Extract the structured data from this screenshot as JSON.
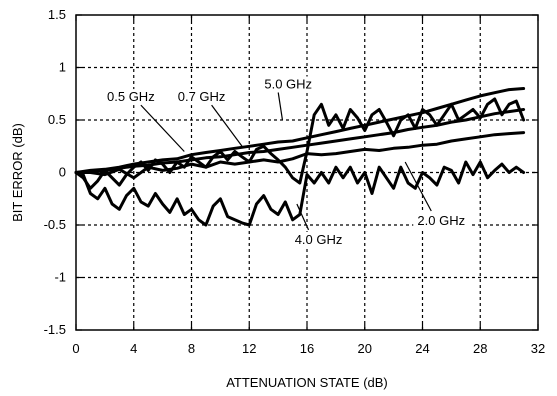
{
  "chart_data": {
    "type": "line",
    "title": "",
    "xlabel": "ATTENUATION STATE (dB)",
    "ylabel": "BIT ERROR (dB)",
    "xlim": [
      0,
      32
    ],
    "ylim": [
      -1.5,
      1.5
    ],
    "xticks": [
      0,
      4,
      8,
      12,
      16,
      20,
      24,
      28,
      32
    ],
    "xtick_labels": [
      "0",
      "4",
      "8",
      "12",
      "16",
      "20",
      "24",
      "28",
      "32"
    ],
    "yticks": [
      -1.5,
      -1,
      -0.5,
      0,
      0.5,
      1,
      1.5
    ],
    "ytick_labels": [
      "-1.5",
      "-1",
      "-0.5",
      "0",
      "0.5",
      "1",
      "1.5"
    ],
    "grid": true,
    "grid_style": "dashed",
    "line_color": "#000000",
    "series": [
      {
        "name": "0.5 GHz",
        "x": [
          0,
          1,
          2,
          3,
          4,
          5,
          6,
          7,
          8,
          9,
          10,
          11,
          12,
          13,
          14,
          15,
          16,
          17,
          18,
          19,
          20,
          21,
          22,
          23,
          24,
          25,
          26,
          27,
          28,
          29,
          30,
          31
        ],
        "values": [
          0.0,
          0.02,
          0.03,
          0.05,
          0.08,
          0.1,
          0.12,
          0.13,
          0.17,
          0.19,
          0.21,
          0.23,
          0.25,
          0.27,
          0.29,
          0.3,
          0.33,
          0.36,
          0.39,
          0.42,
          0.45,
          0.48,
          0.51,
          0.54,
          0.57,
          0.61,
          0.65,
          0.69,
          0.73,
          0.76,
          0.79,
          0.8
        ]
      },
      {
        "name": "0.7 GHz",
        "x": [
          0,
          1,
          2,
          3,
          4,
          5,
          6,
          7,
          8,
          9,
          10,
          11,
          12,
          13,
          14,
          15,
          16,
          17,
          18,
          19,
          20,
          21,
          22,
          23,
          24,
          25,
          26,
          27,
          28,
          29,
          30,
          31
        ],
        "values": [
          0.0,
          0.01,
          0.02,
          0.04,
          0.06,
          0.07,
          0.09,
          0.1,
          0.12,
          0.14,
          0.15,
          0.17,
          0.19,
          0.2,
          0.22,
          0.24,
          0.26,
          0.28,
          0.3,
          0.32,
          0.34,
          0.36,
          0.38,
          0.41,
          0.43,
          0.45,
          0.48,
          0.5,
          0.53,
          0.56,
          0.58,
          0.6
        ]
      },
      {
        "name": "5.0 GHz",
        "x": [
          0,
          0.5,
          1,
          1.5,
          2,
          2.5,
          3,
          3.5,
          4,
          4.5,
          5,
          5.5,
          6,
          6.5,
          7,
          7.5,
          8,
          8.5,
          9,
          9.5,
          10,
          10.5,
          11,
          11.5,
          12,
          12.5,
          13,
          13.5,
          14,
          14.5,
          15,
          15.5,
          16,
          16.5,
          17,
          17.5,
          18,
          18.5,
          19,
          19.5,
          20,
          20.5,
          21,
          21.5,
          22,
          22.5,
          23,
          23.5,
          24,
          24.5,
          25,
          25.5,
          26,
          26.5,
          27,
          27.5,
          28,
          28.5,
          29,
          29.5,
          30,
          30.5,
          31
        ],
        "values": [
          0.0,
          -0.05,
          -0.15,
          -0.08,
          0.02,
          -0.05,
          -0.12,
          -0.02,
          0.05,
          0.1,
          0.02,
          0.12,
          0.08,
          0.0,
          0.1,
          0.05,
          0.15,
          0.1,
          0.05,
          0.15,
          0.2,
          0.12,
          0.2,
          0.15,
          0.1,
          0.22,
          0.25,
          0.18,
          0.12,
          0.05,
          -0.05,
          -0.1,
          0.2,
          0.55,
          0.65,
          0.45,
          0.55,
          0.42,
          0.6,
          0.52,
          0.4,
          0.55,
          0.6,
          0.48,
          0.35,
          0.5,
          0.55,
          0.42,
          0.6,
          0.55,
          0.45,
          0.55,
          0.65,
          0.5,
          0.55,
          0.6,
          0.52,
          0.65,
          0.7,
          0.55,
          0.65,
          0.68,
          0.5
        ]
      },
      {
        "name": "2.0 GHz",
        "x": [
          0,
          1,
          2,
          3,
          4,
          5,
          6,
          7,
          8,
          9,
          10,
          11,
          12,
          13,
          14,
          15,
          16,
          17,
          18,
          19,
          20,
          21,
          22,
          23,
          24,
          25,
          26,
          27,
          28,
          29,
          30,
          31
        ],
        "values": [
          0.0,
          0.0,
          -0.02,
          0.03,
          -0.05,
          0.05,
          0.02,
          0.04,
          0.08,
          0.05,
          0.1,
          0.08,
          0.1,
          0.12,
          0.1,
          0.13,
          0.18,
          0.17,
          0.18,
          0.2,
          0.22,
          0.21,
          0.23,
          0.24,
          0.26,
          0.27,
          0.3,
          0.32,
          0.34,
          0.36,
          0.37,
          0.38
        ]
      },
      {
        "name": "4.0 GHz",
        "x": [
          0,
          0.5,
          1,
          1.5,
          2,
          2.5,
          3,
          3.5,
          4,
          4.5,
          5,
          5.5,
          6,
          6.5,
          7,
          7.5,
          8,
          8.5,
          9,
          9.5,
          10,
          10.5,
          11,
          11.5,
          12,
          12.5,
          13,
          13.5,
          14,
          14.5,
          15,
          15.5,
          16,
          16.5,
          17,
          17.5,
          18,
          18.5,
          19,
          19.5,
          20,
          20.5,
          21,
          21.5,
          22,
          22.5,
          23,
          23.5,
          24,
          24.5,
          25,
          25.5,
          26,
          26.5,
          27,
          27.5,
          28,
          28.5,
          29,
          29.5,
          30,
          30.5,
          31
        ],
        "values": [
          0.0,
          -0.02,
          -0.2,
          -0.25,
          -0.15,
          -0.3,
          -0.35,
          -0.22,
          -0.15,
          -0.28,
          -0.32,
          -0.2,
          -0.3,
          -0.38,
          -0.25,
          -0.4,
          -0.35,
          -0.45,
          -0.5,
          -0.32,
          -0.25,
          -0.42,
          -0.45,
          -0.48,
          -0.5,
          -0.3,
          -0.22,
          -0.35,
          -0.4,
          -0.28,
          -0.45,
          -0.4,
          -0.02,
          -0.1,
          0.0,
          -0.1,
          0.05,
          -0.05,
          0.05,
          -0.1,
          0.0,
          -0.2,
          0.05,
          -0.05,
          -0.15,
          0.05,
          -0.1,
          -0.15,
          0.0,
          -0.05,
          -0.12,
          0.05,
          0.02,
          -0.1,
          0.1,
          -0.02,
          0.1,
          -0.05,
          0.02,
          0.08,
          0.0,
          0.05,
          0.0
        ]
      }
    ],
    "annotations": [
      {
        "text": "0.5 GHz",
        "x": 3.8,
        "y": 0.68,
        "arrow_to": [
          7.5,
          0.2
        ]
      },
      {
        "text": "0.7 GHz",
        "x": 8.7,
        "y": 0.68,
        "arrow_to": [
          11.5,
          0.25
        ]
      },
      {
        "text": "5.0 GHz",
        "x": 14.7,
        "y": 0.8,
        "arrow_to": [
          14.3,
          0.5
        ]
      },
      {
        "text": "2.0 GHz",
        "x": 25.3,
        "y": -0.5,
        "arrow_to": [
          22.8,
          0.1
        ]
      },
      {
        "text": "4.0 GHz",
        "x": 16.8,
        "y": -0.68,
        "arrow_to": [
          15.3,
          -0.3
        ]
      }
    ]
  }
}
